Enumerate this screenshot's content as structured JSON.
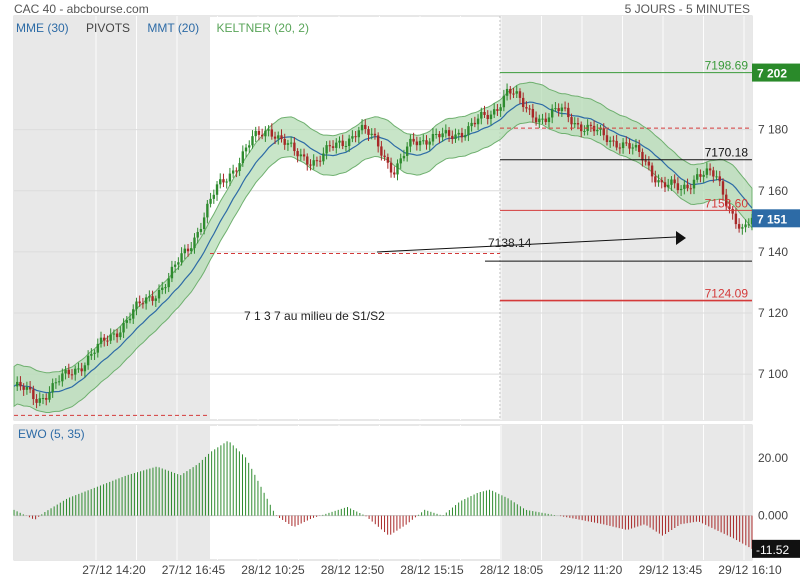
{
  "header": {
    "title": "CAC 40 - abcbourse.com",
    "period": "5 JOURS - 5 MINUTES"
  },
  "legend": [
    {
      "label": "MME (30)",
      "color": "#2d6ba6"
    },
    {
      "label": "PIVOTS",
      "color": "#444444"
    },
    {
      "label": "MMT (20)",
      "color": "#2d6ba6"
    },
    {
      "label": "KELTNER (20, 2)",
      "color": "#5aa55a"
    }
  ],
  "annotation": "7 1 3 7 au milieu de S1/S2",
  "colors": {
    "up": "#2e8b2e",
    "down": "#a82828",
    "band_fill": "#b5dcb5",
    "band_line": "#6fb06f",
    "ma": "#2d6ba6",
    "shade": "#e8e8e8",
    "pivot_red": "#d43a3a"
  },
  "chart_data": [
    {
      "type": "candlestick",
      "title": "CAC 40",
      "ylim": [
        7085,
        7210
      ],
      "y_ticks": [
        "7 180",
        "7 160",
        "7 140",
        "7 120",
        "7 100"
      ],
      "y_tick_values": [
        7180,
        7160,
        7140,
        7120,
        7100
      ],
      "x_ticks": [
        "27/12 14:20",
        "27/12 16:45",
        "28/12 10:25",
        "28/12 12:50",
        "28/12 15:15",
        "28/12 18:05",
        "29/12 11:20",
        "29/12 13:45",
        "29/12 16:10"
      ],
      "price_keypoints": [
        [
          0,
          7096
        ],
        [
          0.04,
          7092
        ],
        [
          0.08,
          7098
        ],
        [
          0.14,
          7108
        ],
        [
          0.2,
          7120
        ],
        [
          0.26,
          7131
        ],
        [
          0.3,
          7144
        ],
        [
          0.34,
          7160
        ],
        [
          0.4,
          7176
        ],
        [
          0.43,
          7181
        ],
        [
          0.47,
          7172
        ],
        [
          0.51,
          7170
        ],
        [
          0.55,
          7176
        ],
        [
          0.58,
          7180
        ],
        [
          0.61,
          7176
        ],
        [
          0.64,
          7166
        ],
        [
          0.67,
          7176
        ],
        [
          0.7,
          7178
        ],
        [
          0.73,
          7177
        ],
        [
          0.77,
          7182
        ],
        [
          0.8,
          7184
        ],
        [
          0.83,
          7194
        ],
        [
          0.86,
          7186
        ],
        [
          0.89,
          7184
        ],
        [
          0.92,
          7186
        ],
        [
          0.95,
          7182
        ],
        [
          0.985,
          7178
        ],
        [
          1.02,
          7176
        ],
        [
          1.06,
          7170
        ],
        [
          1.09,
          7162
        ],
        [
          1.12,
          7160
        ],
        [
          1.15,
          7166
        ],
        [
          1.18,
          7164
        ],
        [
          1.21,
          7152
        ],
        [
          1.225,
          7146
        ],
        [
          1.24,
          7150
        ]
      ],
      "x_domain": [
        0,
        1.24
      ],
      "last_price": "7 151",
      "reference_lines": [
        {
          "value": 7198.69,
          "label": "7198.69",
          "color": "#3a9a3a",
          "style": "solid"
        },
        {
          "value": 7170.18,
          "label": "7170.18",
          "color": "#111111",
          "style": "solid"
        },
        {
          "value": 7153.6,
          "label": "7153.60",
          "color": "#d43a3a",
          "style": "solid"
        },
        {
          "value": 7124.09,
          "label": "7124.09",
          "color": "#d43a3a",
          "style": "solid"
        },
        {
          "value": 7137.0,
          "label": "",
          "color": "#111111",
          "style": "solid"
        },
        {
          "value": 7180.5,
          "label": "",
          "color": "#d43a3a",
          "style": "dashed"
        },
        {
          "value": 7139.5,
          "label": "",
          "color": "#d43a3a",
          "style": "dashed"
        },
        {
          "value": 7086.5,
          "label": "",
          "color": "#d43a3a",
          "style": "dashed"
        }
      ],
      "top_badge": "7 202",
      "drawn_label": "7138.14"
    },
    {
      "type": "bar",
      "title": "EWO (5, 35)",
      "ylim": [
        -14,
        30
      ],
      "y_ticks": [
        "20.00",
        "0.000"
      ],
      "y_tick_values": [
        20,
        0
      ],
      "last_value": "-11.52",
      "ewo_keypoints": [
        [
          0,
          2
        ],
        [
          0.02,
          0
        ],
        [
          0.035,
          -1.5
        ],
        [
          0.05,
          1
        ],
        [
          0.09,
          6
        ],
        [
          0.14,
          10
        ],
        [
          0.19,
          14
        ],
        [
          0.24,
          17
        ],
        [
          0.28,
          14
        ],
        [
          0.31,
          18
        ],
        [
          0.33,
          22
        ],
        [
          0.36,
          26
        ],
        [
          0.39,
          20
        ],
        [
          0.42,
          8
        ],
        [
          0.44,
          0
        ],
        [
          0.47,
          -4
        ],
        [
          0.5,
          -1
        ],
        [
          0.53,
          1
        ],
        [
          0.56,
          3
        ],
        [
          0.59,
          0
        ],
        [
          0.63,
          -7
        ],
        [
          0.66,
          -3
        ],
        [
          0.69,
          2
        ],
        [
          0.72,
          0
        ],
        [
          0.75,
          5
        ],
        [
          0.78,
          8
        ],
        [
          0.8,
          9
        ],
        [
          0.83,
          6
        ],
        [
          0.86,
          2
        ],
        [
          0.9,
          0.5
        ],
        [
          0.94,
          -1
        ],
        [
          0.99,
          -3
        ],
        [
          1.03,
          -5
        ],
        [
          1.06,
          -3
        ],
        [
          1.09,
          -7
        ],
        [
          1.12,
          -3
        ],
        [
          1.15,
          -2
        ],
        [
          1.18,
          -5
        ],
        [
          1.21,
          -8
        ],
        [
          1.24,
          -11.52
        ]
      ]
    }
  ]
}
